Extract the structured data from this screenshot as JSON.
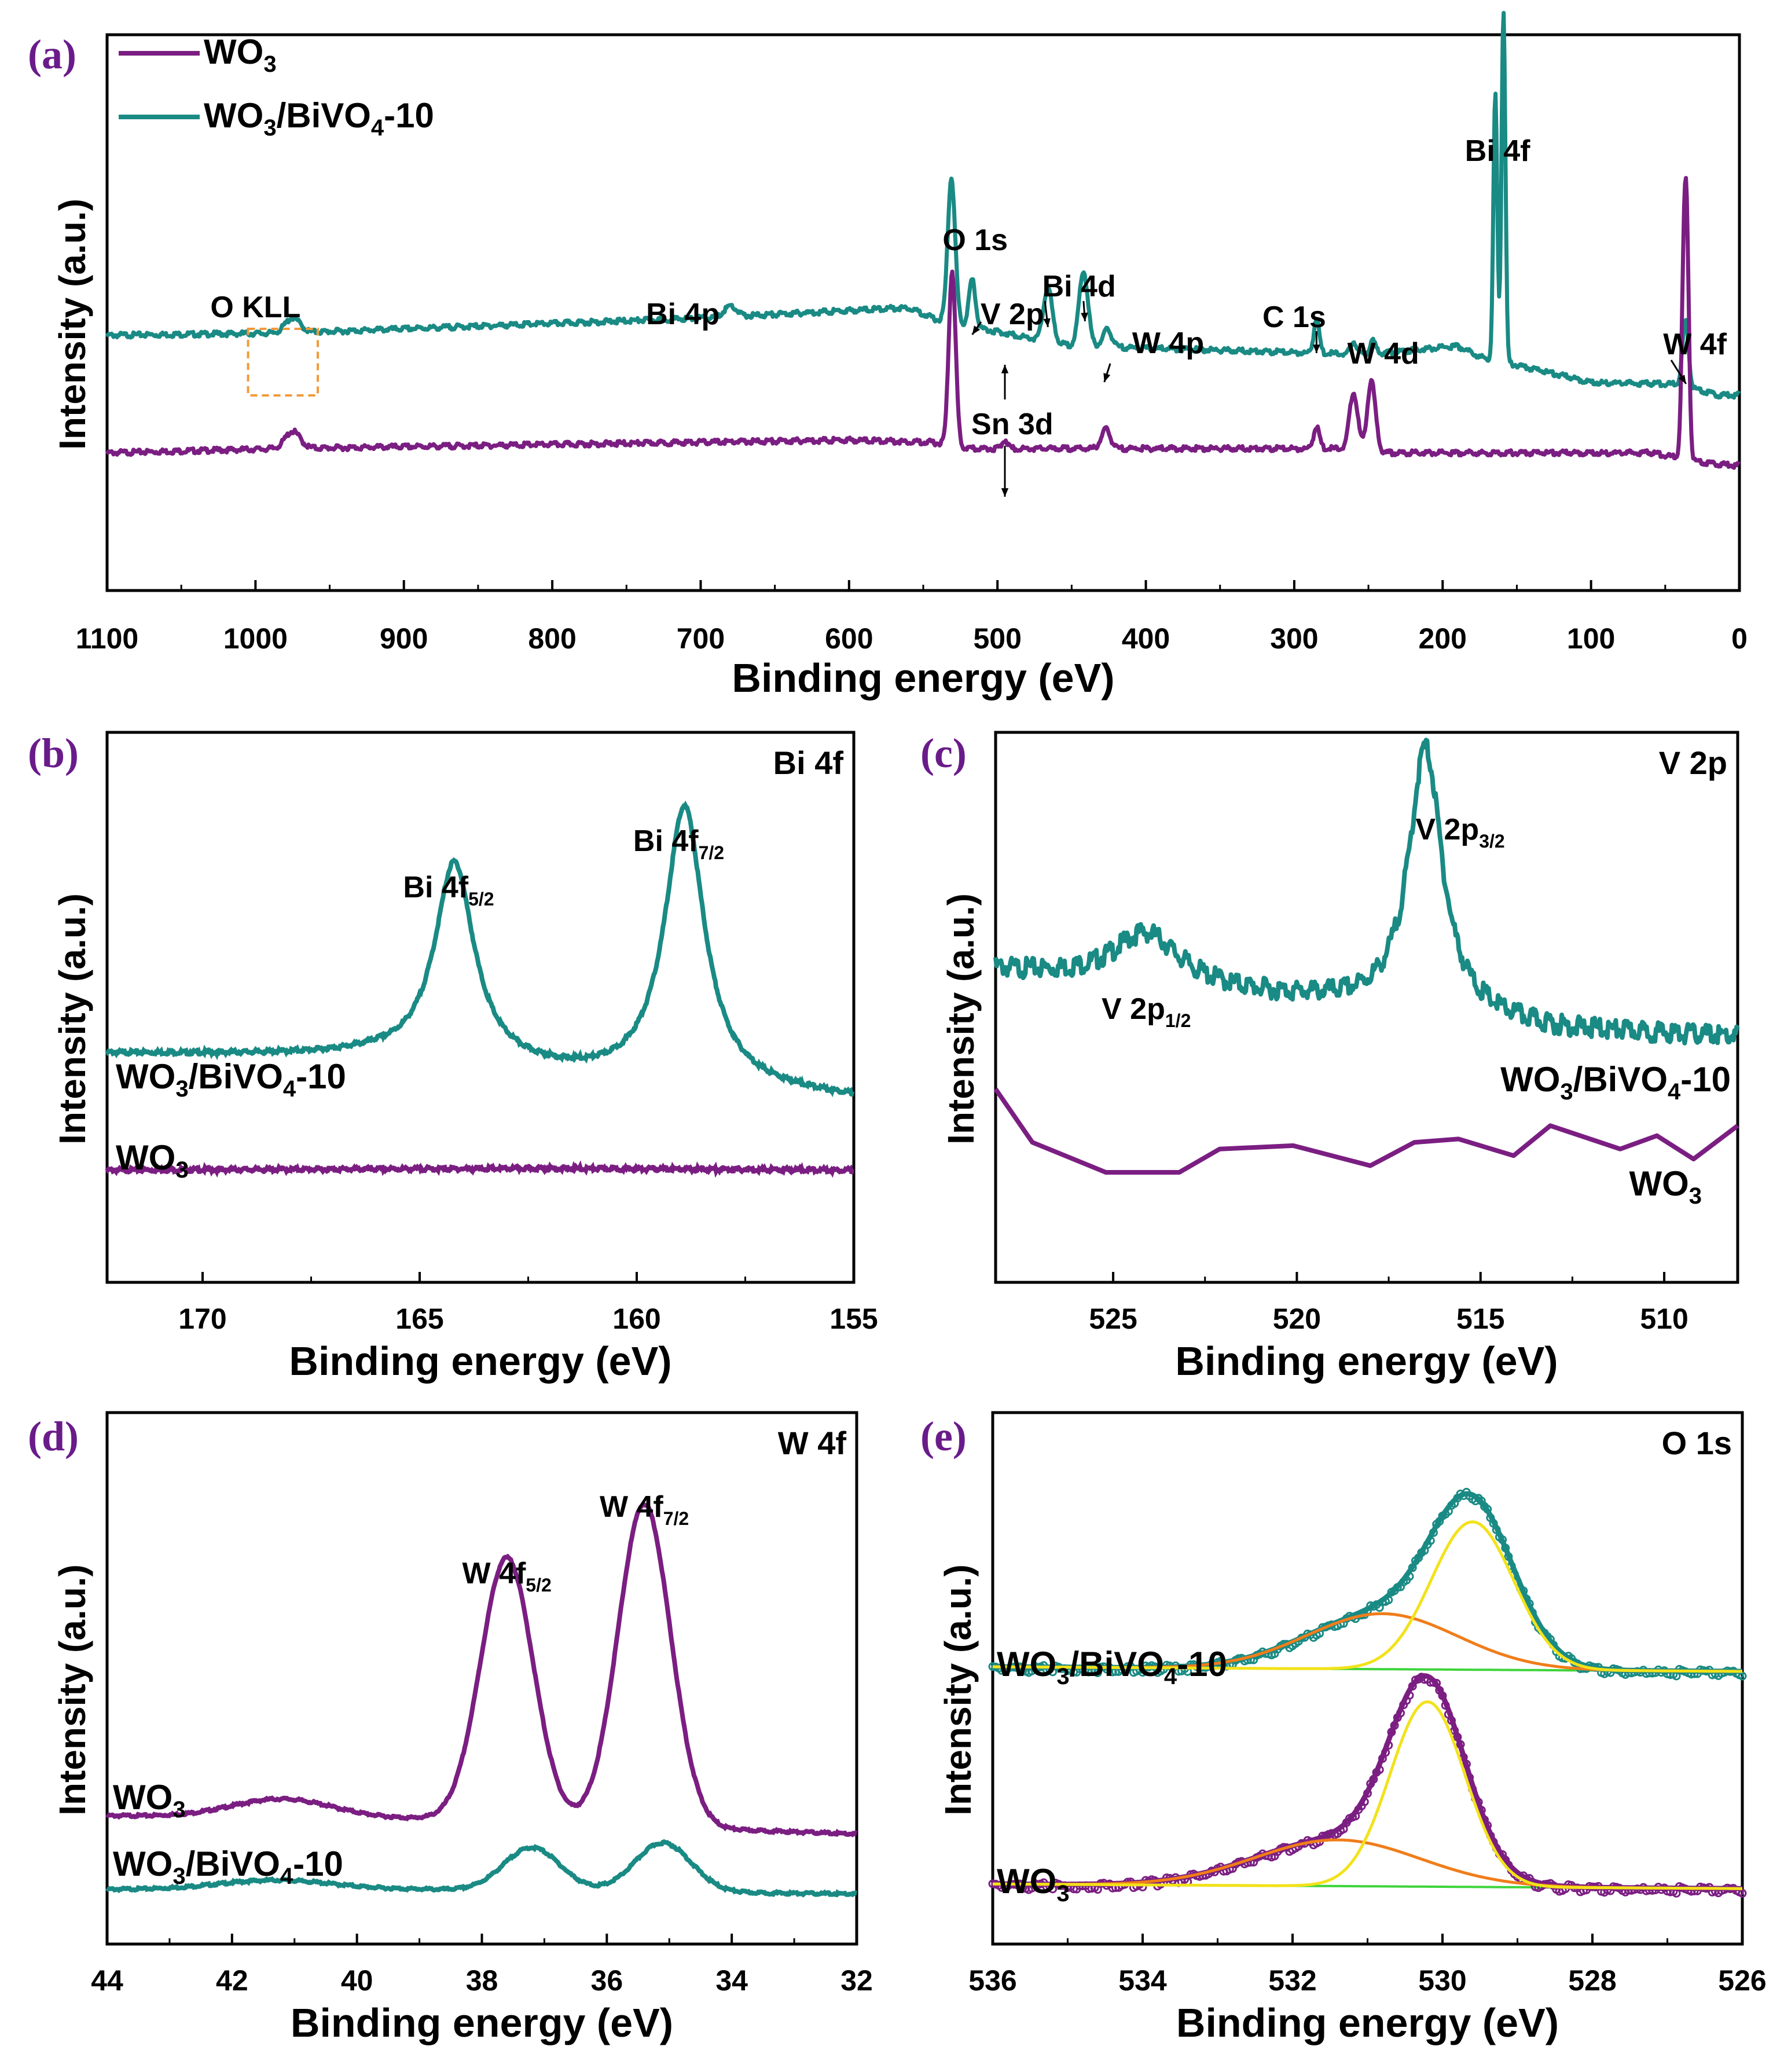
{
  "colors": {
    "wo3": "#7b1e82",
    "composite": "#1a8a84",
    "fit_orange": "#f07d1a",
    "fit_yellow": "#f2e21a",
    "baseline_green": "#3ed43a",
    "panel_label": "#6a1b8a",
    "kll_box": "#f29a3a"
  },
  "chart_data": [
    {
      "id": "a",
      "type": "line",
      "panel_label": "(a)",
      "xlabel": "Binding energy (eV)",
      "ylabel": "Intensity (a.u.)",
      "xlim": [
        1100,
        0
      ],
      "xticks": [
        1100,
        1000,
        900,
        800,
        700,
        600,
        500,
        400,
        300,
        200,
        100,
        0
      ],
      "legend": [
        {
          "series": "WO3",
          "base": "WO",
          "sub": "3",
          "tail": ""
        },
        {
          "series": "WO3/BiVO4-10",
          "base": "WO",
          "sub": "3",
          "mid": "/BiVO",
          "sub2": "4",
          "tail": "-10"
        }
      ],
      "annotations": [
        "O KLL",
        "Bi 4p",
        "O 1s",
        "V 2p",
        "Bi 4d",
        "W 4p",
        "Sn 3d",
        "C 1s",
        "W 4d",
        "Bi 4f",
        "W 4f"
      ],
      "series": [
        {
          "name": "WO3/BiVO4-10",
          "baseline": [
            [
              1100,
              0.55
            ],
            [
              980,
              0.56
            ],
            [
              700,
              0.63
            ],
            [
              560,
              0.68
            ],
            [
              540,
              0.62
            ],
            [
              450,
              0.5
            ],
            [
              250,
              0.46
            ],
            [
              190,
              0.5
            ],
            [
              175,
              0.45
            ],
            [
              100,
              0.33
            ],
            [
              40,
              0.32
            ],
            [
              15,
              0.27
            ],
            [
              0,
              0.27
            ]
          ],
          "peaks": [
            [
              975,
              0.07,
              5
            ],
            [
              680,
              0.05,
              4
            ],
            [
              531,
              0.68,
              2.5
            ],
            [
              517,
              0.22,
              2.2
            ],
            [
              466,
              0.25,
              3
            ],
            [
              442,
              0.35,
              3
            ],
            [
              426,
              0.08,
              3
            ],
            [
              285,
              0.16,
              1.8
            ],
            [
              260,
              0.06,
              2
            ],
            [
              247,
              0.06,
              2
            ],
            [
              164.5,
              1.25,
              1.3
            ],
            [
              159,
              1.65,
              1.3
            ],
            [
              37.5,
              0.18,
              1.6
            ],
            [
              35.3,
              0.2,
              1.6
            ]
          ]
        },
        {
          "name": "WO3",
          "baseline": [
            [
              1100,
              0
            ],
            [
              980,
              0.02
            ],
            [
              600,
              0.06
            ],
            [
              545,
              0.05
            ],
            [
              520,
              0.02
            ],
            [
              270,
              0.02
            ],
            [
              245,
              0.0
            ],
            [
              60,
              0.0
            ],
            [
              20,
              -0.05
            ],
            [
              0,
              -0.06
            ]
          ],
          "peaks": [
            [
              975,
              0.08,
              5
            ],
            [
              530.5,
              0.82,
              2.3
            ],
            [
              495,
              0.04,
              2
            ],
            [
              427,
              0.09,
              3
            ],
            [
              285,
              0.1,
              2
            ],
            [
              260,
              0.27,
              2.8
            ],
            [
              248,
              0.33,
              2.8
            ],
            [
              37.6,
              0.75,
              1.5
            ],
            [
              35.4,
              0.95,
              1.5
            ]
          ]
        }
      ]
    },
    {
      "id": "b",
      "type": "line",
      "panel_label": "(b)",
      "corner_title": "Bi 4f",
      "xlabel": "Binding energy (eV)",
      "ylabel": "Intensity (a.u.)",
      "xlim": [
        172.2,
        155
      ],
      "xticks": [
        170,
        165,
        160,
        155
      ],
      "peak_labels": [
        {
          "base": "Bi 4f",
          "sub": "5/2",
          "x": 164.2
        },
        {
          "base": "Bi 4f",
          "sub": "7/2",
          "x": 158.9
        }
      ],
      "series_labels": [
        {
          "series": "WO3/BiVO4-10",
          "base": "WO",
          "sub": "3",
          "mid": "/BiVO",
          "sub2": "4",
          "tail": "-10"
        },
        {
          "series": "WO3",
          "base": "WO",
          "sub": "3",
          "tail": ""
        }
      ],
      "series": [
        {
          "name": "WO3/BiVO4-10",
          "baseline": [
            [
              172.2,
              0.36
            ],
            [
              166,
              0.35
            ],
            [
              161,
              0.28
            ],
            [
              155,
              0.22
            ]
          ],
          "peaks": [
            [
              164.2,
              0.62,
              0.55
            ],
            [
              158.9,
              0.86,
              0.55
            ]
          ]
        },
        {
          "name": "WO3",
          "baseline": [
            [
              172.2,
              0.0
            ],
            [
              162,
              0.005
            ],
            [
              155,
              0.0
            ]
          ],
          "peaks": []
        }
      ]
    },
    {
      "id": "c",
      "type": "line",
      "panel_label": "(c)",
      "corner_title": "V 2p",
      "xlabel": "Binding energy (eV)",
      "ylabel": "Intensity (a.u.)",
      "xlim": [
        528.2,
        508
      ],
      "xticks": [
        525,
        520,
        515,
        510
      ],
      "peak_labels": [
        {
          "base": "V 2p",
          "sub": "3/2",
          "x": 516.5
        },
        {
          "base": "V 2p",
          "sub": "1/2",
          "x": 524.1
        }
      ],
      "series_labels": [
        {
          "series": "WO3/BiVO4-10",
          "base": "WO",
          "sub": "3",
          "mid": "/BiVO",
          "sub2": "4",
          "tail": "-10"
        },
        {
          "series": "WO3",
          "base": "WO",
          "sub": "3",
          "tail": ""
        }
      ],
      "series": [
        {
          "name": "WO3/BiVO4-10",
          "baseline": [
            [
              528.2,
              0.65
            ],
            [
              524,
              0.6
            ],
            [
              519,
              0.55
            ],
            [
              513,
              0.47
            ],
            [
              508,
              0.45
            ]
          ],
          "peaks": [
            [
              524.1,
              0.16,
              1.1
            ],
            [
              516.5,
              0.8,
              0.55
            ]
          ]
        },
        {
          "name": "WO3",
          "points": [
            [
              528.2,
              0.28
            ],
            [
              527.2,
              0.12
            ],
            [
              525.2,
              0.03
            ],
            [
              523.2,
              0.03
            ],
            [
              522.1,
              0.1
            ],
            [
              520.1,
              0.11
            ],
            [
              518,
              0.05
            ],
            [
              516.8,
              0.12
            ],
            [
              515.6,
              0.13
            ],
            [
              514.1,
              0.08
            ],
            [
              513.1,
              0.17
            ],
            [
              511.2,
              0.1
            ],
            [
              510.2,
              0.14
            ],
            [
              509.2,
              0.07
            ],
            [
              508,
              0.17
            ]
          ]
        }
      ]
    },
    {
      "id": "d",
      "type": "line",
      "panel_label": "(d)",
      "corner_title": "W 4f",
      "xlabel": "Binding energy (eV)",
      "ylabel": "Intensity (a.u.)",
      "xlim": [
        44,
        32
      ],
      "xticks": [
        44,
        42,
        40,
        38,
        36,
        34,
        32
      ],
      "peak_labels": [
        {
          "base": "W 4f",
          "sub": "5/2",
          "x": 37.6
        },
        {
          "base": "W 4f",
          "sub": "7/2",
          "x": 35.4
        }
      ],
      "series_labels": [
        {
          "series": "WO3",
          "base": "WO",
          "sub": "3",
          "tail": ""
        },
        {
          "series": "WO3/BiVO4-10",
          "base": "WO",
          "sub": "3",
          "mid": "/BiVO",
          "sub2": "4",
          "tail": "-10"
        }
      ],
      "series": [
        {
          "name": "WO3",
          "baseline": [
            [
              44,
              0.24
            ],
            [
              39,
              0.23
            ],
            [
              32,
              0.18
            ]
          ],
          "peaks": [
            [
              41.2,
              0.06,
              0.8
            ],
            [
              37.6,
              0.86,
              0.42
            ],
            [
              35.4,
              1.05,
              0.42
            ]
          ]
        },
        {
          "name": "WO3/BiVO4-10",
          "baseline": [
            [
              44,
              0.0
            ],
            [
              39,
              0.0
            ],
            [
              32,
              -0.015
            ]
          ],
          "peaks": [
            [
              41.3,
              0.03,
              0.9
            ],
            [
              37.2,
              0.14,
              0.45
            ],
            [
              35.1,
              0.16,
              0.45
            ]
          ]
        }
      ]
    },
    {
      "id": "e",
      "type": "line",
      "panel_label": "(e)",
      "corner_title": "O 1s",
      "xlabel": "Binding energy (eV)",
      "ylabel": "Intensity (a.u.)",
      "xlim": [
        536,
        526
      ],
      "xticks": [
        536,
        534,
        532,
        530,
        528,
        526
      ],
      "series_labels": [
        {
          "series": "WO3/BiVO4-10",
          "base": "WO",
          "sub": "3",
          "mid": "/BiVO",
          "sub2": "4",
          "tail": "-10"
        },
        {
          "series": "WO3",
          "base": "WO",
          "sub": "3",
          "tail": ""
        }
      ],
      "series": [
        {
          "name": "WO3/BiVO4-10",
          "baseline": [
            [
              536,
              0.5
            ],
            [
              526,
              0.49
            ]
          ],
          "components": [
            [
              529.6,
              0.32,
              0.55,
              "fit_yellow"
            ],
            [
              530.8,
              0.12,
              1.0,
              "fit_orange"
            ]
          ],
          "sum_width": 0.45
        },
        {
          "name": "WO3",
          "baseline": [
            [
              536,
              0.03
            ],
            [
              526,
              0.02
            ]
          ],
          "components": [
            [
              530.2,
              0.4,
              0.5,
              "fit_yellow"
            ],
            [
              531.4,
              0.1,
              1.1,
              "fit_orange"
            ]
          ],
          "sum_width": 0.45
        }
      ]
    }
  ]
}
